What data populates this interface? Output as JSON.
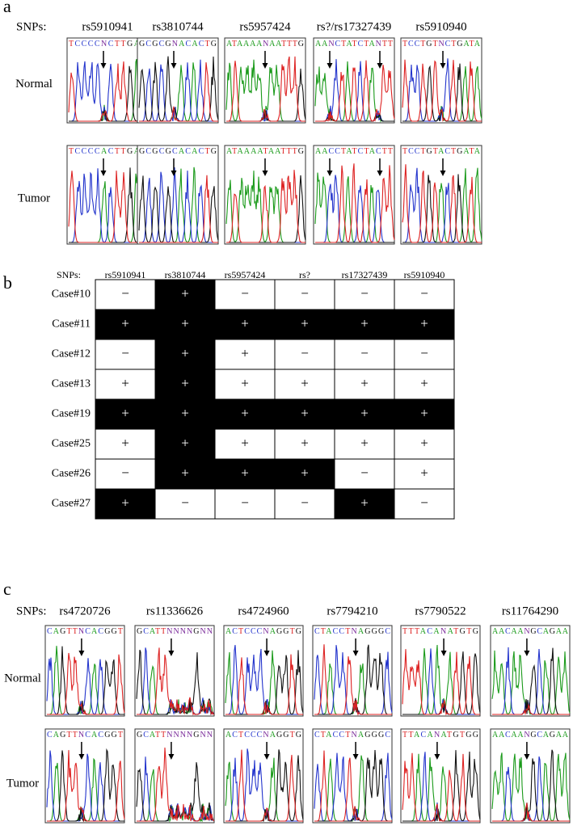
{
  "panel_a": {
    "label": "a",
    "snps_label": "SNPs:",
    "snps": [
      "rs5910941",
      "rs3810744",
      "rs5957424",
      "rs?/rs17327439",
      "rs5910940"
    ],
    "rows": [
      "Normal",
      "Tumor"
    ],
    "sequences": [
      [
        "TCCCCNCTTGAC",
        "GCGCGNACACTG",
        "ATAAAANAATTTG",
        "AANCTATCTANTT",
        "TCCTGTNCTGATA"
      ],
      [
        "TCCCCACTTGAC",
        "GCGCGCACACTG",
        "ATAAAATAATTTG",
        "AACCTATCTACTT",
        "TCCTGTACTGATA"
      ]
    ]
  },
  "panel_b": {
    "label": "b",
    "snps_label": "SNPs:",
    "columns": [
      "rs5910941",
      "rs3810744",
      "rs5957424",
      "rs?",
      "rs17327439",
      "rs5910940"
    ],
    "rows": [
      {
        "case": "Case#10",
        "cells": [
          "−",
          "+",
          "−",
          "−",
          "−",
          "−"
        ],
        "shaded": [
          false,
          true,
          false,
          false,
          false,
          false
        ]
      },
      {
        "case": "Case#11",
        "cells": [
          "+",
          "+",
          "+",
          "+",
          "+",
          "+"
        ],
        "shaded": [
          true,
          true,
          true,
          true,
          true,
          true
        ]
      },
      {
        "case": "Case#12",
        "cells": [
          "−",
          "+",
          "+",
          "−",
          "−",
          "−"
        ],
        "shaded": [
          false,
          true,
          false,
          false,
          false,
          false
        ]
      },
      {
        "case": "Case#13",
        "cells": [
          "+",
          "+",
          "+",
          "+",
          "+",
          "+"
        ],
        "shaded": [
          false,
          true,
          false,
          false,
          false,
          false
        ]
      },
      {
        "case": "Case#19",
        "cells": [
          "+",
          "+",
          "+",
          "+",
          "+",
          "+"
        ],
        "shaded": [
          true,
          true,
          true,
          true,
          true,
          true
        ]
      },
      {
        "case": "Case#25",
        "cells": [
          "+",
          "+",
          "+",
          "+",
          "+",
          "+"
        ],
        "shaded": [
          false,
          true,
          false,
          false,
          false,
          false
        ]
      },
      {
        "case": "Case#26",
        "cells": [
          "−",
          "+",
          "+",
          "+",
          "−",
          "+"
        ],
        "shaded": [
          false,
          true,
          true,
          true,
          false,
          false
        ]
      },
      {
        "case": "Case#27",
        "cells": [
          "+",
          "−",
          "−",
          "−",
          "+",
          "−"
        ],
        "shaded": [
          true,
          false,
          false,
          false,
          true,
          false
        ]
      }
    ]
  },
  "panel_c": {
    "label": "c",
    "snps_label": "SNPs:",
    "snps": [
      "rs4720726",
      "rs11336626",
      "rs4724960",
      "rs7794210",
      "rs7790522",
      "rs11764290"
    ],
    "rows": [
      "Normal",
      "Tumor"
    ],
    "sequences": [
      [
        "CAGTTNCACGGT",
        "GCATTNNNNGNN",
        "ACTCCCNAGGTG",
        "CTACCTNAGGGC",
        "TTTACANATGTG",
        "AACAANGCAGAA"
      ],
      [
        "CAGTTNCACGGT",
        "GCATTNNNNGNN",
        "ACTCCCNAGGTG",
        "CTACCTNAGGGC",
        "TTACANATGTGG",
        "AACAANGCAGAA"
      ]
    ]
  }
}
